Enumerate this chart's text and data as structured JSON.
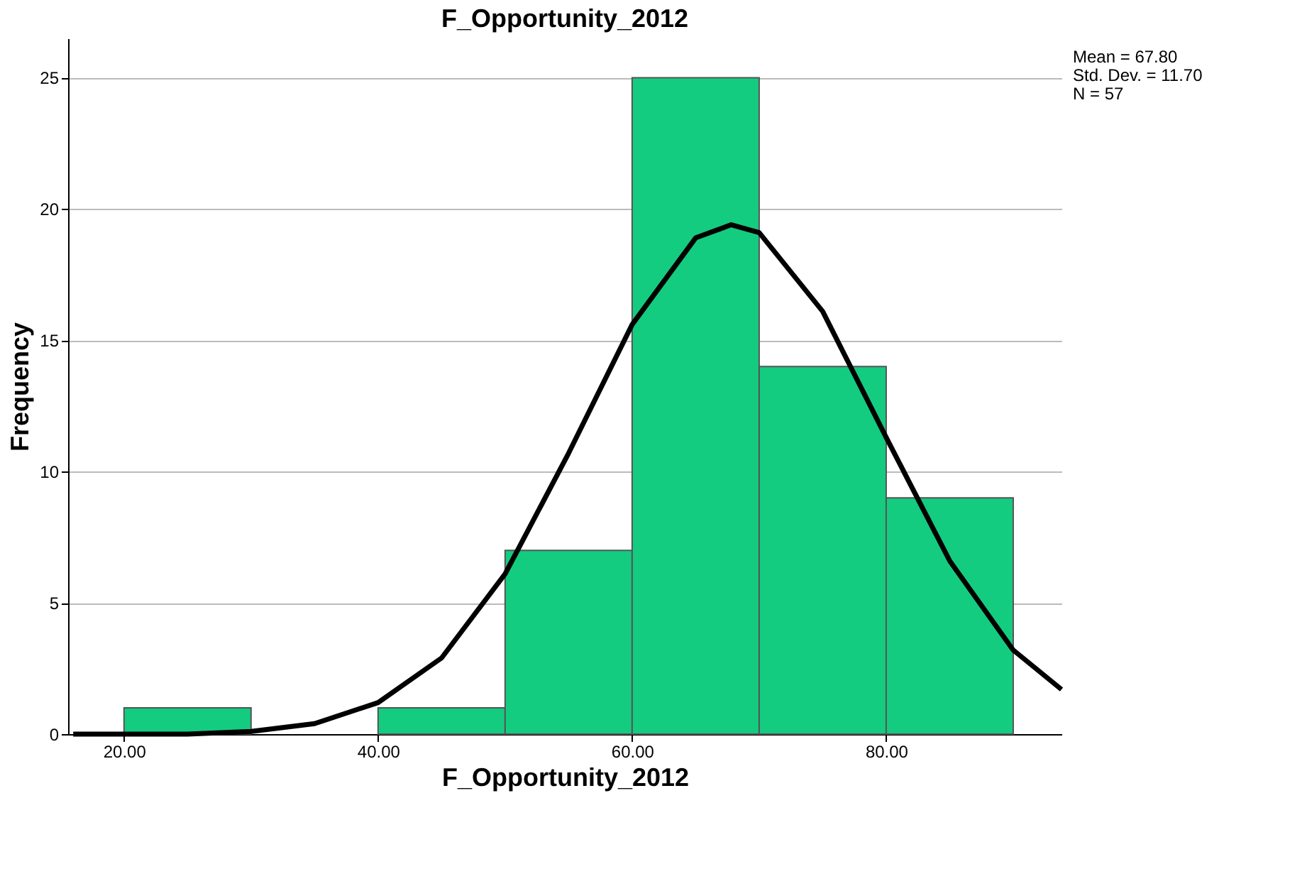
{
  "chart_data": {
    "type": "histogram",
    "title": "F_Opportunity_2012",
    "xlabel": "F_Opportunity_2012",
    "ylabel": "Frequency",
    "bins": [
      20,
      30,
      40,
      50,
      60,
      70,
      80,
      90
    ],
    "values": [
      1,
      0,
      1,
      7,
      25,
      14,
      9
    ],
    "color": "#14cc80",
    "series": [
      {
        "type": "line",
        "color": "#000000",
        "x": [
          16,
          25,
          30,
          35,
          40,
          45,
          50,
          55,
          60,
          65,
          67.8,
          70,
          75,
          80,
          85,
          90,
          93.8
        ],
        "values": [
          0.0,
          0.0,
          0.1,
          0.4,
          1.2,
          2.9,
          6.1,
          10.7,
          15.6,
          18.9,
          19.4,
          19.1,
          16.1,
          11.3,
          6.6,
          3.2,
          1.7
        ]
      }
    ],
    "xlim": [
      15.6,
      93.8
    ],
    "ylim": [
      0,
      26.5
    ],
    "xticks": [
      {
        "value": 20,
        "label": "20.00"
      },
      {
        "value": 40,
        "label": "40.00"
      },
      {
        "value": 60,
        "label": "60.00"
      },
      {
        "value": 80,
        "label": "80.00"
      }
    ],
    "yticks": [
      0,
      5,
      10,
      15,
      20,
      25
    ],
    "grid": "y",
    "annotations": [
      "Mean = 67.80",
      "Std. Dev. = 11.70",
      "N = 57"
    ]
  }
}
